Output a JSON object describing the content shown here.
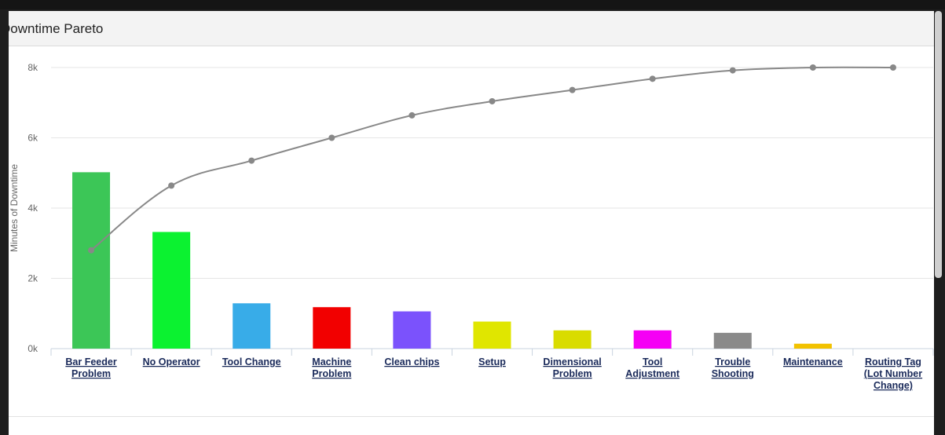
{
  "panel": {
    "title": "Downtime Pareto"
  },
  "chart_data": {
    "type": "bar",
    "title": "Downtime Pareto",
    "xlabel": "",
    "ylabel": "Minutes of Downtime",
    "ylim": [
      0,
      8000
    ],
    "yticks": [
      0,
      2000,
      4000,
      6000,
      8000
    ],
    "ytick_labels": [
      "0k",
      "2k",
      "4k",
      "6k",
      "8k"
    ],
    "grid": true,
    "categories": [
      [
        "Bar Feeder",
        "Problem"
      ],
      [
        "No Operator"
      ],
      [
        "Tool Change"
      ],
      [
        "Machine",
        "Problem"
      ],
      [
        "Clean chips"
      ],
      [
        "Setup"
      ],
      [
        "Dimensional",
        "Problem"
      ],
      [
        "Tool",
        "Adjustment"
      ],
      [
        "Trouble",
        "Shooting"
      ],
      [
        "Maintenance"
      ],
      [
        "Routing Tag",
        "(Lot Number",
        "Change)"
      ]
    ],
    "series": [
      {
        "type": "bar",
        "values": [
          5020,
          3320,
          1290,
          1180,
          1060,
          770,
          520,
          520,
          450,
          140,
          0
        ],
        "colors": [
          "#3cc657",
          "#0bf230",
          "#38ace8",
          "#f20000",
          "#7b52fc",
          "#e0e600",
          "#d9dc00",
          "#f500f5",
          "#8a8a8a",
          "#f2c200",
          "#cccccc"
        ]
      },
      {
        "type": "line",
        "values": [
          2800,
          4640,
          5350,
          6000,
          6640,
          7040,
          7360,
          7680,
          7920,
          8000,
          8000
        ],
        "color": "#888888"
      }
    ]
  }
}
